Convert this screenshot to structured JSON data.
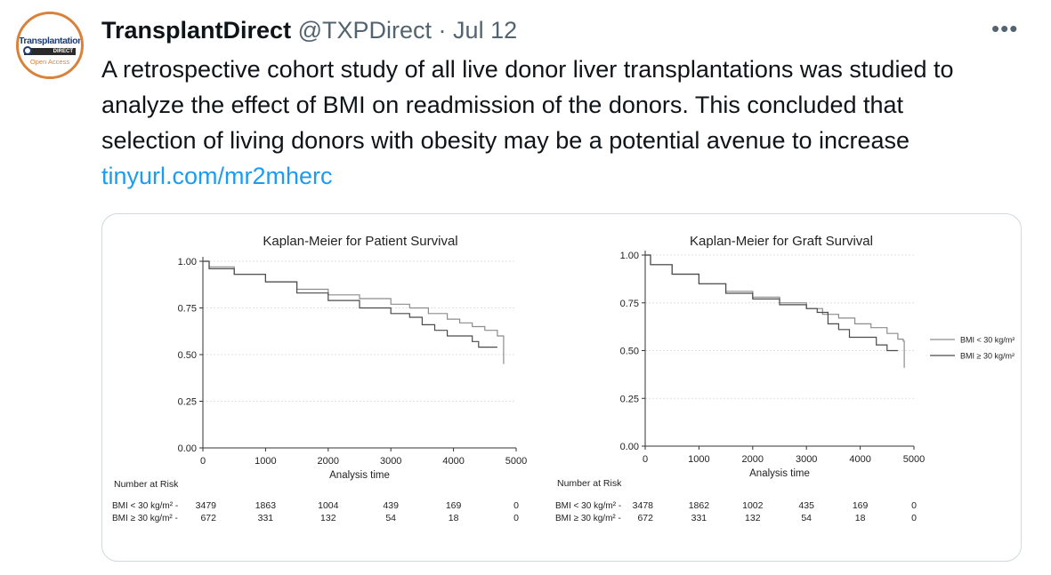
{
  "tweet": {
    "author_name": "TransplantDirect",
    "handle": "@TXPDirect",
    "separator": "·",
    "date": "Jul 12",
    "more_icon": "more-horizontal-icon",
    "text": "A retrospective cohort study of all live donor liver transplantations was studied to analyze the effect of BMI on readmission of the donors. This concluded that selection of living donors with obesity may be a potential avenue to increase ",
    "link": "tinyurl.com/mr2mherc"
  },
  "avatar": {
    "name": "Transplantation",
    "direct": "DIRECT",
    "open_access": "Open Access",
    "ring_color": "#d9823b",
    "text_color": "#1d3b6d"
  },
  "chart_data": [
    {
      "type": "line",
      "title": "Kaplan-Meier for Patient Survival",
      "xlabel": "Analysis time",
      "ylabel": "",
      "xlim": [
        0,
        5000
      ],
      "ylim": [
        0,
        1
      ],
      "xticks": [
        "0",
        "1000",
        "2000",
        "3000",
        "4000",
        "5000"
      ],
      "yticks": [
        "0.00",
        "0.25",
        "0.50",
        "0.75",
        "1.00"
      ],
      "grid": true,
      "series": [
        {
          "line_color": "#8c8c8c",
          "x": [
            0,
            100,
            500,
            1000,
            1500,
            2000,
            2500,
            3000,
            3300,
            3600,
            3900,
            4100,
            4300,
            4500,
            4700,
            4780,
            4800
          ],
          "y": [
            1.0,
            0.97,
            0.93,
            0.89,
            0.85,
            0.82,
            0.8,
            0.77,
            0.75,
            0.72,
            0.69,
            0.67,
            0.65,
            0.63,
            0.6,
            0.6,
            0.45
          ]
        },
        {
          "line_color": "#4a4a4a",
          "x": [
            0,
            100,
            500,
            1000,
            1500,
            2000,
            2500,
            3000,
            3300,
            3500,
            3700,
            3900,
            4100,
            4300,
            4400,
            4700
          ],
          "y": [
            1.0,
            0.96,
            0.93,
            0.89,
            0.83,
            0.79,
            0.75,
            0.72,
            0.7,
            0.66,
            0.63,
            0.6,
            0.6,
            0.57,
            0.54,
            0.54
          ]
        }
      ],
      "risk_table": {
        "title": "Number at Risk",
        "rows": [
          {
            "label": "BMI < 30 kg/m² -",
            "values": [
              "3479",
              "1863",
              "1004",
              "439",
              "169",
              "0"
            ]
          },
          {
            "label": "BMI ≥ 30 kg/m² -",
            "values": [
              "672",
              "331",
              "132",
              "54",
              "18",
              "0"
            ]
          }
        ]
      }
    },
    {
      "type": "line",
      "title": "Kaplan-Meier for Graft Survival",
      "xlabel": "Analysis time",
      "ylabel": "",
      "xlim": [
        0,
        5000
      ],
      "ylim": [
        0,
        1
      ],
      "xticks": [
        "0",
        "1000",
        "2000",
        "3000",
        "4000",
        "5000"
      ],
      "yticks": [
        "0.00",
        "0.25",
        "0.50",
        "0.75",
        "1.00"
      ],
      "grid": true,
      "legend_position": "right",
      "series": [
        {
          "name": "BMI < 30 kg/m²",
          "line_color": "#8c8c8c",
          "x": [
            0,
            100,
            500,
            1000,
            1500,
            2000,
            2500,
            3000,
            3300,
            3600,
            3900,
            4200,
            4500,
            4700,
            4800,
            4820
          ],
          "y": [
            1.0,
            0.95,
            0.9,
            0.85,
            0.81,
            0.78,
            0.75,
            0.72,
            0.69,
            0.67,
            0.64,
            0.62,
            0.59,
            0.56,
            0.55,
            0.41
          ]
        },
        {
          "name": "BMI ≥ 30 kg/m²",
          "line_color": "#4a4a4a",
          "x": [
            0,
            100,
            500,
            1000,
            1500,
            2000,
            2500,
            3000,
            3200,
            3400,
            3600,
            3800,
            4100,
            4300,
            4500,
            4700
          ],
          "y": [
            1.0,
            0.95,
            0.9,
            0.85,
            0.8,
            0.77,
            0.74,
            0.72,
            0.7,
            0.64,
            0.61,
            0.57,
            0.57,
            0.53,
            0.5,
            0.5
          ]
        }
      ],
      "risk_table": {
        "title": "Number at Risk",
        "rows": [
          {
            "label": "BMI < 30 kg/m² -",
            "values": [
              "3478",
              "1862",
              "1002",
              "435",
              "169",
              "0"
            ]
          },
          {
            "label": "BMI ≥ 30 kg/m² -",
            "values": [
              "672",
              "331",
              "132",
              "54",
              "18",
              "0"
            ]
          }
        ]
      }
    }
  ]
}
